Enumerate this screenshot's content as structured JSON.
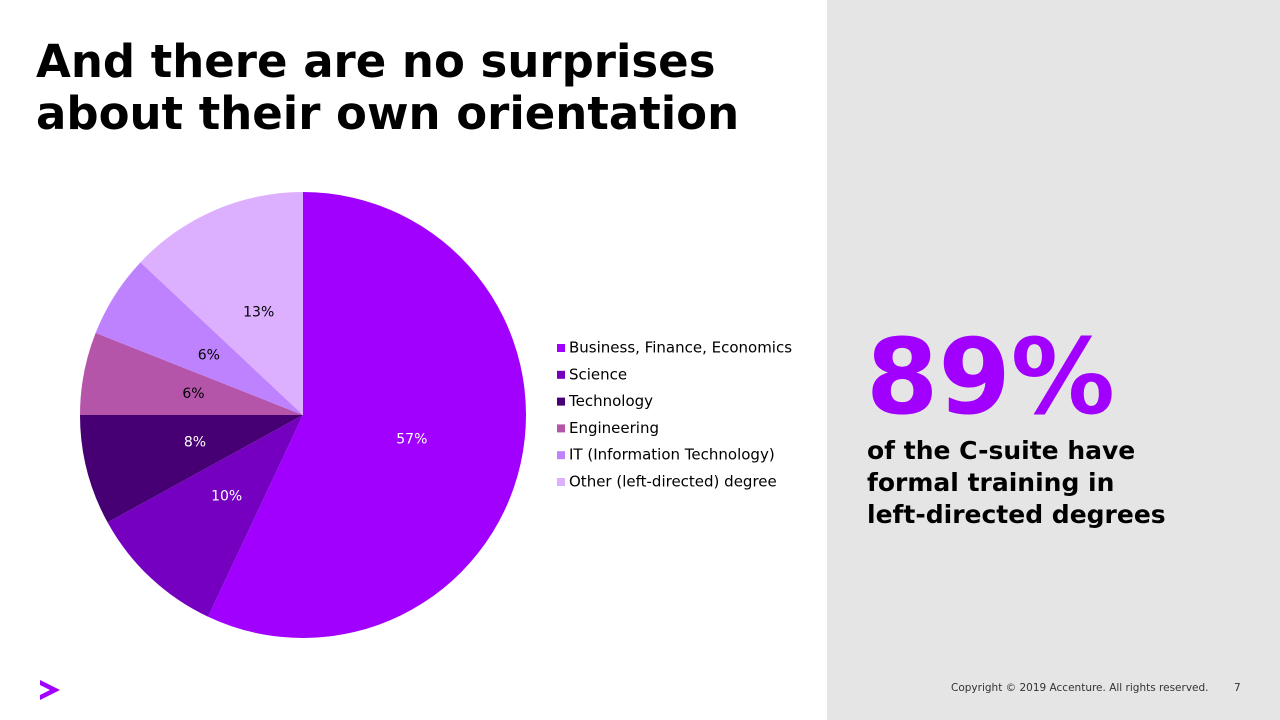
{
  "slide": {
    "title_lines": [
      "And there are no surprises",
      "about their own orientation"
    ],
    "stat": "89%",
    "stat_color": "#a100ff",
    "stat_caption_lines": [
      "of the C-suite have",
      "formal training in",
      "left-directed degrees"
    ],
    "copyright": "Copyright © 2019 Accenture. All rights reserved.",
    "page_number": "7"
  },
  "chart_data": {
    "type": "pie",
    "categories": [
      "Business, Finance, Economics",
      "Science",
      "Technology",
      "Engineering",
      "IT (Information Technology)",
      "Other (left-directed) degree"
    ],
    "values": [
      57,
      10,
      8,
      6,
      6,
      13
    ],
    "value_labels": [
      "57%",
      "10%",
      "8%",
      "6%",
      "6%",
      "13%"
    ],
    "colors": [
      "#a100ff",
      "#7500c0",
      "#460073",
      "#b455aa",
      "#be82ff",
      "#dcafff"
    ],
    "legend": "right"
  }
}
